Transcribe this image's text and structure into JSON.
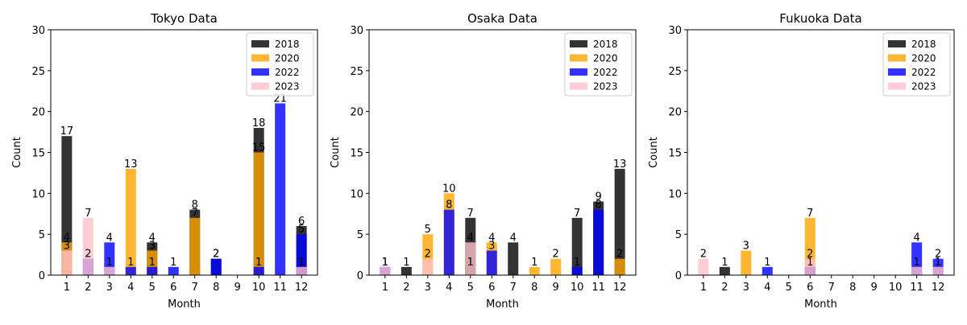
{
  "chart_data": [
    {
      "type": "bar",
      "title": "Tokyo Data",
      "xlabel": "Month",
      "ylabel": "Count",
      "ylim": [
        0,
        30
      ],
      "yticks": [
        "0",
        "5",
        "10",
        "15",
        "20",
        "25",
        "30"
      ],
      "categories": [
        "1",
        "2",
        "3",
        "4",
        "5",
        "6",
        "7",
        "8",
        "9",
        "10",
        "11",
        "12"
      ],
      "legend": {
        "placement": "top-right"
      },
      "series": [
        {
          "name": "2018",
          "color": "#000000",
          "values": [
            17,
            0,
            0,
            0,
            4,
            0,
            8,
            2,
            0,
            18,
            0,
            6
          ]
        },
        {
          "name": "2020",
          "color": "#FFA500",
          "values": [
            4,
            0,
            0,
            13,
            3,
            0,
            7,
            0,
            0,
            15,
            0,
            0
          ]
        },
        {
          "name": "2022",
          "color": "#0000FF",
          "values": [
            0,
            2,
            4,
            1,
            1,
            1,
            0,
            2,
            0,
            1,
            21,
            5
          ]
        },
        {
          "name": "2023",
          "color": "#FFC0CB",
          "values": [
            3,
            7,
            1,
            0,
            0,
            0,
            0,
            0,
            0,
            0,
            0,
            1
          ]
        }
      ]
    },
    {
      "type": "bar",
      "title": "Osaka Data",
      "xlabel": "Month",
      "ylabel": "Count",
      "ylim": [
        0,
        30
      ],
      "yticks": [
        "0",
        "5",
        "10",
        "15",
        "20",
        "25",
        "30"
      ],
      "categories": [
        "1",
        "2",
        "3",
        "4",
        "5",
        "6",
        "7",
        "8",
        "9",
        "10",
        "11",
        "12"
      ],
      "legend": {
        "placement": "top-right"
      },
      "series": [
        {
          "name": "2018",
          "color": "#000000",
          "values": [
            0,
            1,
            0,
            0,
            7,
            0,
            4,
            0,
            0,
            7,
            9,
            13
          ]
        },
        {
          "name": "2020",
          "color": "#FFA500",
          "values": [
            0,
            0,
            5,
            10,
            0,
            4,
            0,
            1,
            2,
            0,
            0,
            2
          ]
        },
        {
          "name": "2022",
          "color": "#0000FF",
          "values": [
            1,
            0,
            0,
            8,
            0,
            3,
            0,
            0,
            0,
            1,
            8,
            0
          ]
        },
        {
          "name": "2023",
          "color": "#FFC0CB",
          "values": [
            1,
            0,
            2,
            0,
            4,
            0,
            0,
            0,
            0,
            0,
            0,
            0
          ]
        }
      ],
      "extra_labels": [
        {
          "category": "5",
          "value": 1
        }
      ]
    },
    {
      "type": "bar",
      "title": "Fukuoka Data",
      "xlabel": "Month",
      "ylabel": "Count",
      "ylim": [
        0,
        30
      ],
      "yticks": [
        "0",
        "5",
        "10",
        "15",
        "20",
        "25",
        "30"
      ],
      "categories": [
        "1",
        "2",
        "3",
        "4",
        "5",
        "6",
        "7",
        "8",
        "9",
        "10",
        "11",
        "12"
      ],
      "legend": {
        "placement": "top-right"
      },
      "series": [
        {
          "name": "2018",
          "color": "#000000",
          "values": [
            0,
            1,
            0,
            0,
            0,
            0,
            0,
            0,
            0,
            0,
            0,
            0
          ]
        },
        {
          "name": "2020",
          "color": "#FFA500",
          "values": [
            0,
            0,
            3,
            0,
            0,
            7,
            0,
            0,
            0,
            0,
            0,
            0
          ]
        },
        {
          "name": "2022",
          "color": "#0000FF",
          "values": [
            0,
            0,
            0,
            1,
            0,
            1,
            0,
            0,
            0,
            0,
            4,
            2
          ]
        },
        {
          "name": "2023",
          "color": "#FFC0CB",
          "values": [
            2,
            0,
            0,
            0,
            0,
            2,
            0,
            0,
            0,
            0,
            1,
            1
          ]
        }
      ]
    }
  ]
}
